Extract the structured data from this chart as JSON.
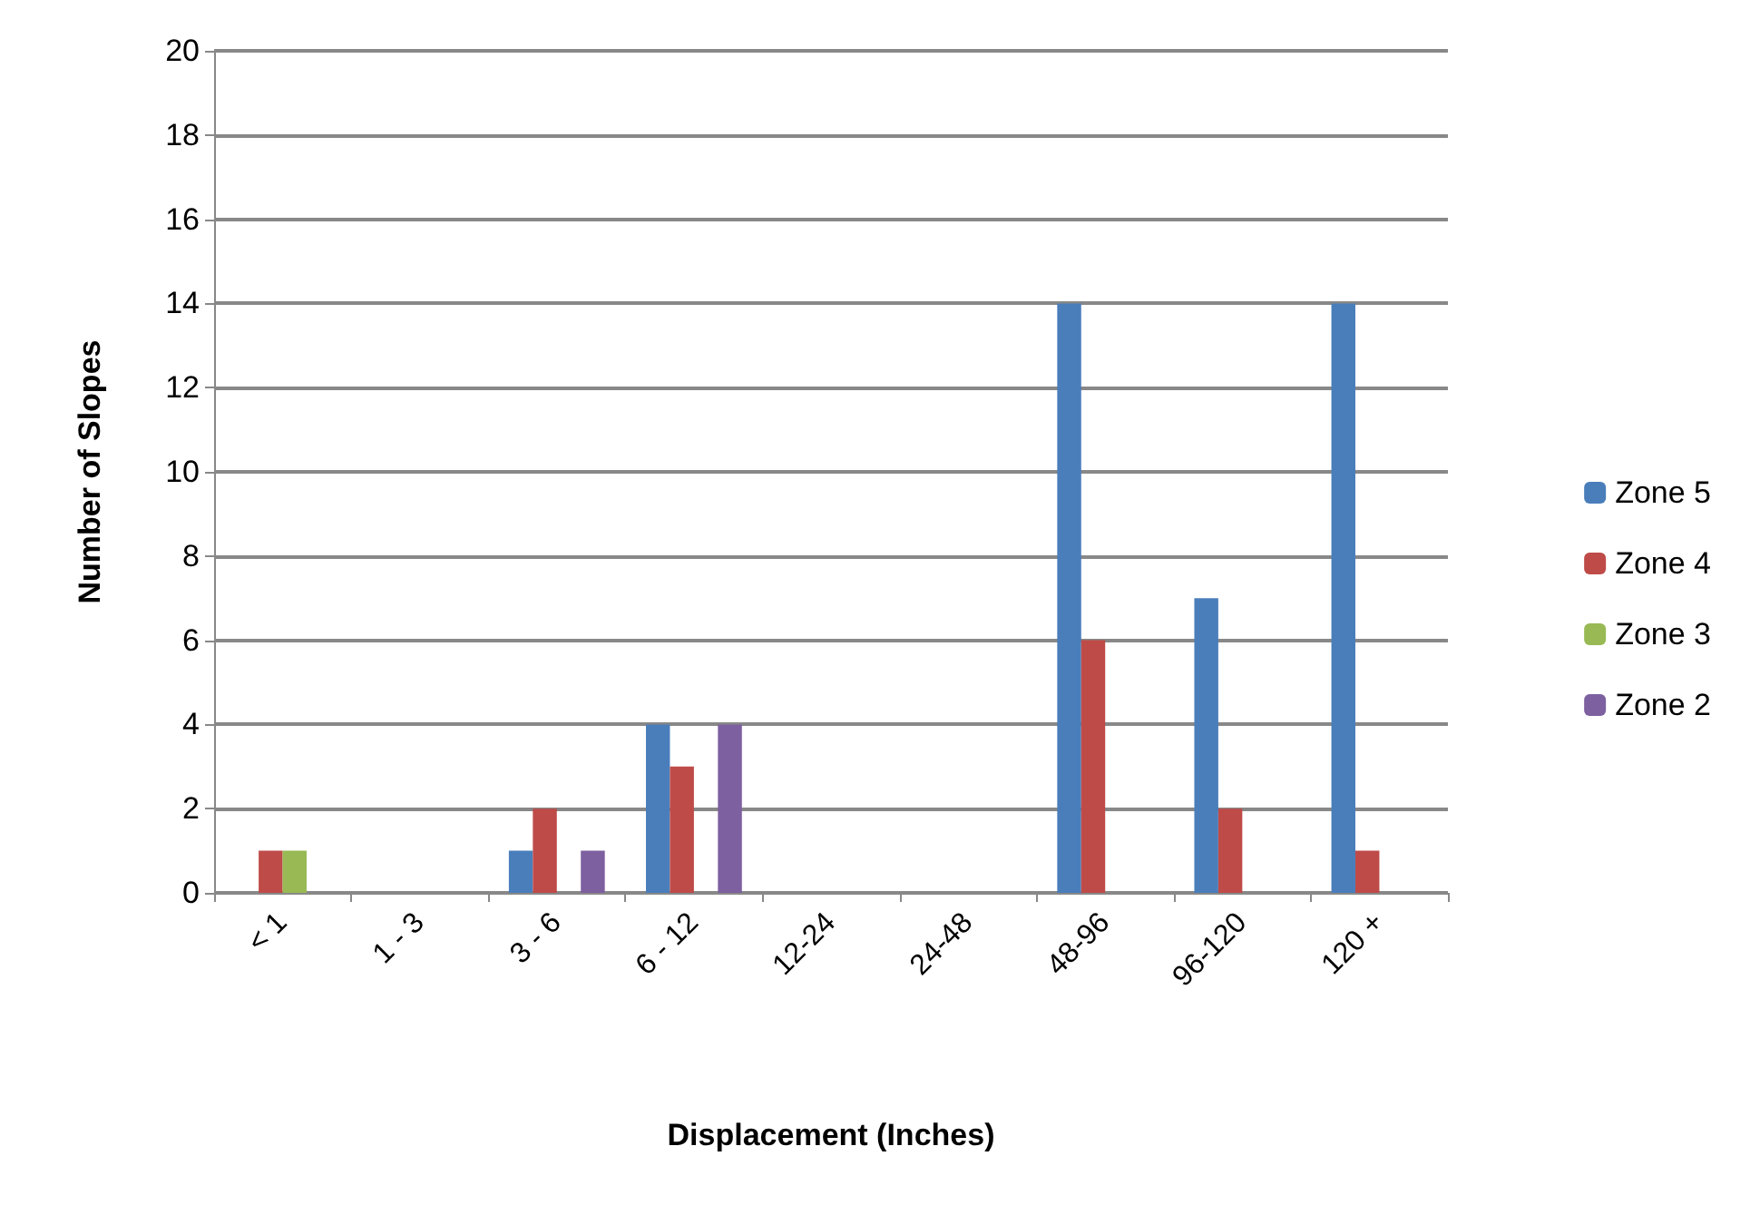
{
  "chart_data": {
    "type": "bar",
    "xlabel": "Displacement (Inches)",
    "ylabel": "Number of Slopes",
    "categories": [
      "< 1",
      "1 - 3",
      "3 - 6",
      "6 - 12",
      "12-24",
      "24-48",
      "48-96",
      "96-120",
      "120 +"
    ],
    "series": [
      {
        "name": "Zone 5",
        "color": "#4a7ebb",
        "values": [
          0,
          0,
          1,
          4,
          0,
          0,
          14,
          7,
          14
        ]
      },
      {
        "name": "Zone 4",
        "color": "#be4b48",
        "values": [
          1,
          0,
          2,
          3,
          0,
          0,
          6,
          2,
          1
        ]
      },
      {
        "name": "Zone 3",
        "color": "#98b954",
        "values": [
          1,
          0,
          0,
          0,
          0,
          0,
          0,
          0,
          0
        ]
      },
      {
        "name": "Zone 2",
        "color": "#7d60a0",
        "values": [
          0,
          0,
          1,
          4,
          0,
          0,
          0,
          0,
          0
        ]
      }
    ],
    "ylim": [
      0,
      20
    ],
    "yticks": [
      0,
      2,
      4,
      6,
      8,
      10,
      12,
      14,
      16,
      18,
      20
    ],
    "grid": "y",
    "legend": "right"
  }
}
